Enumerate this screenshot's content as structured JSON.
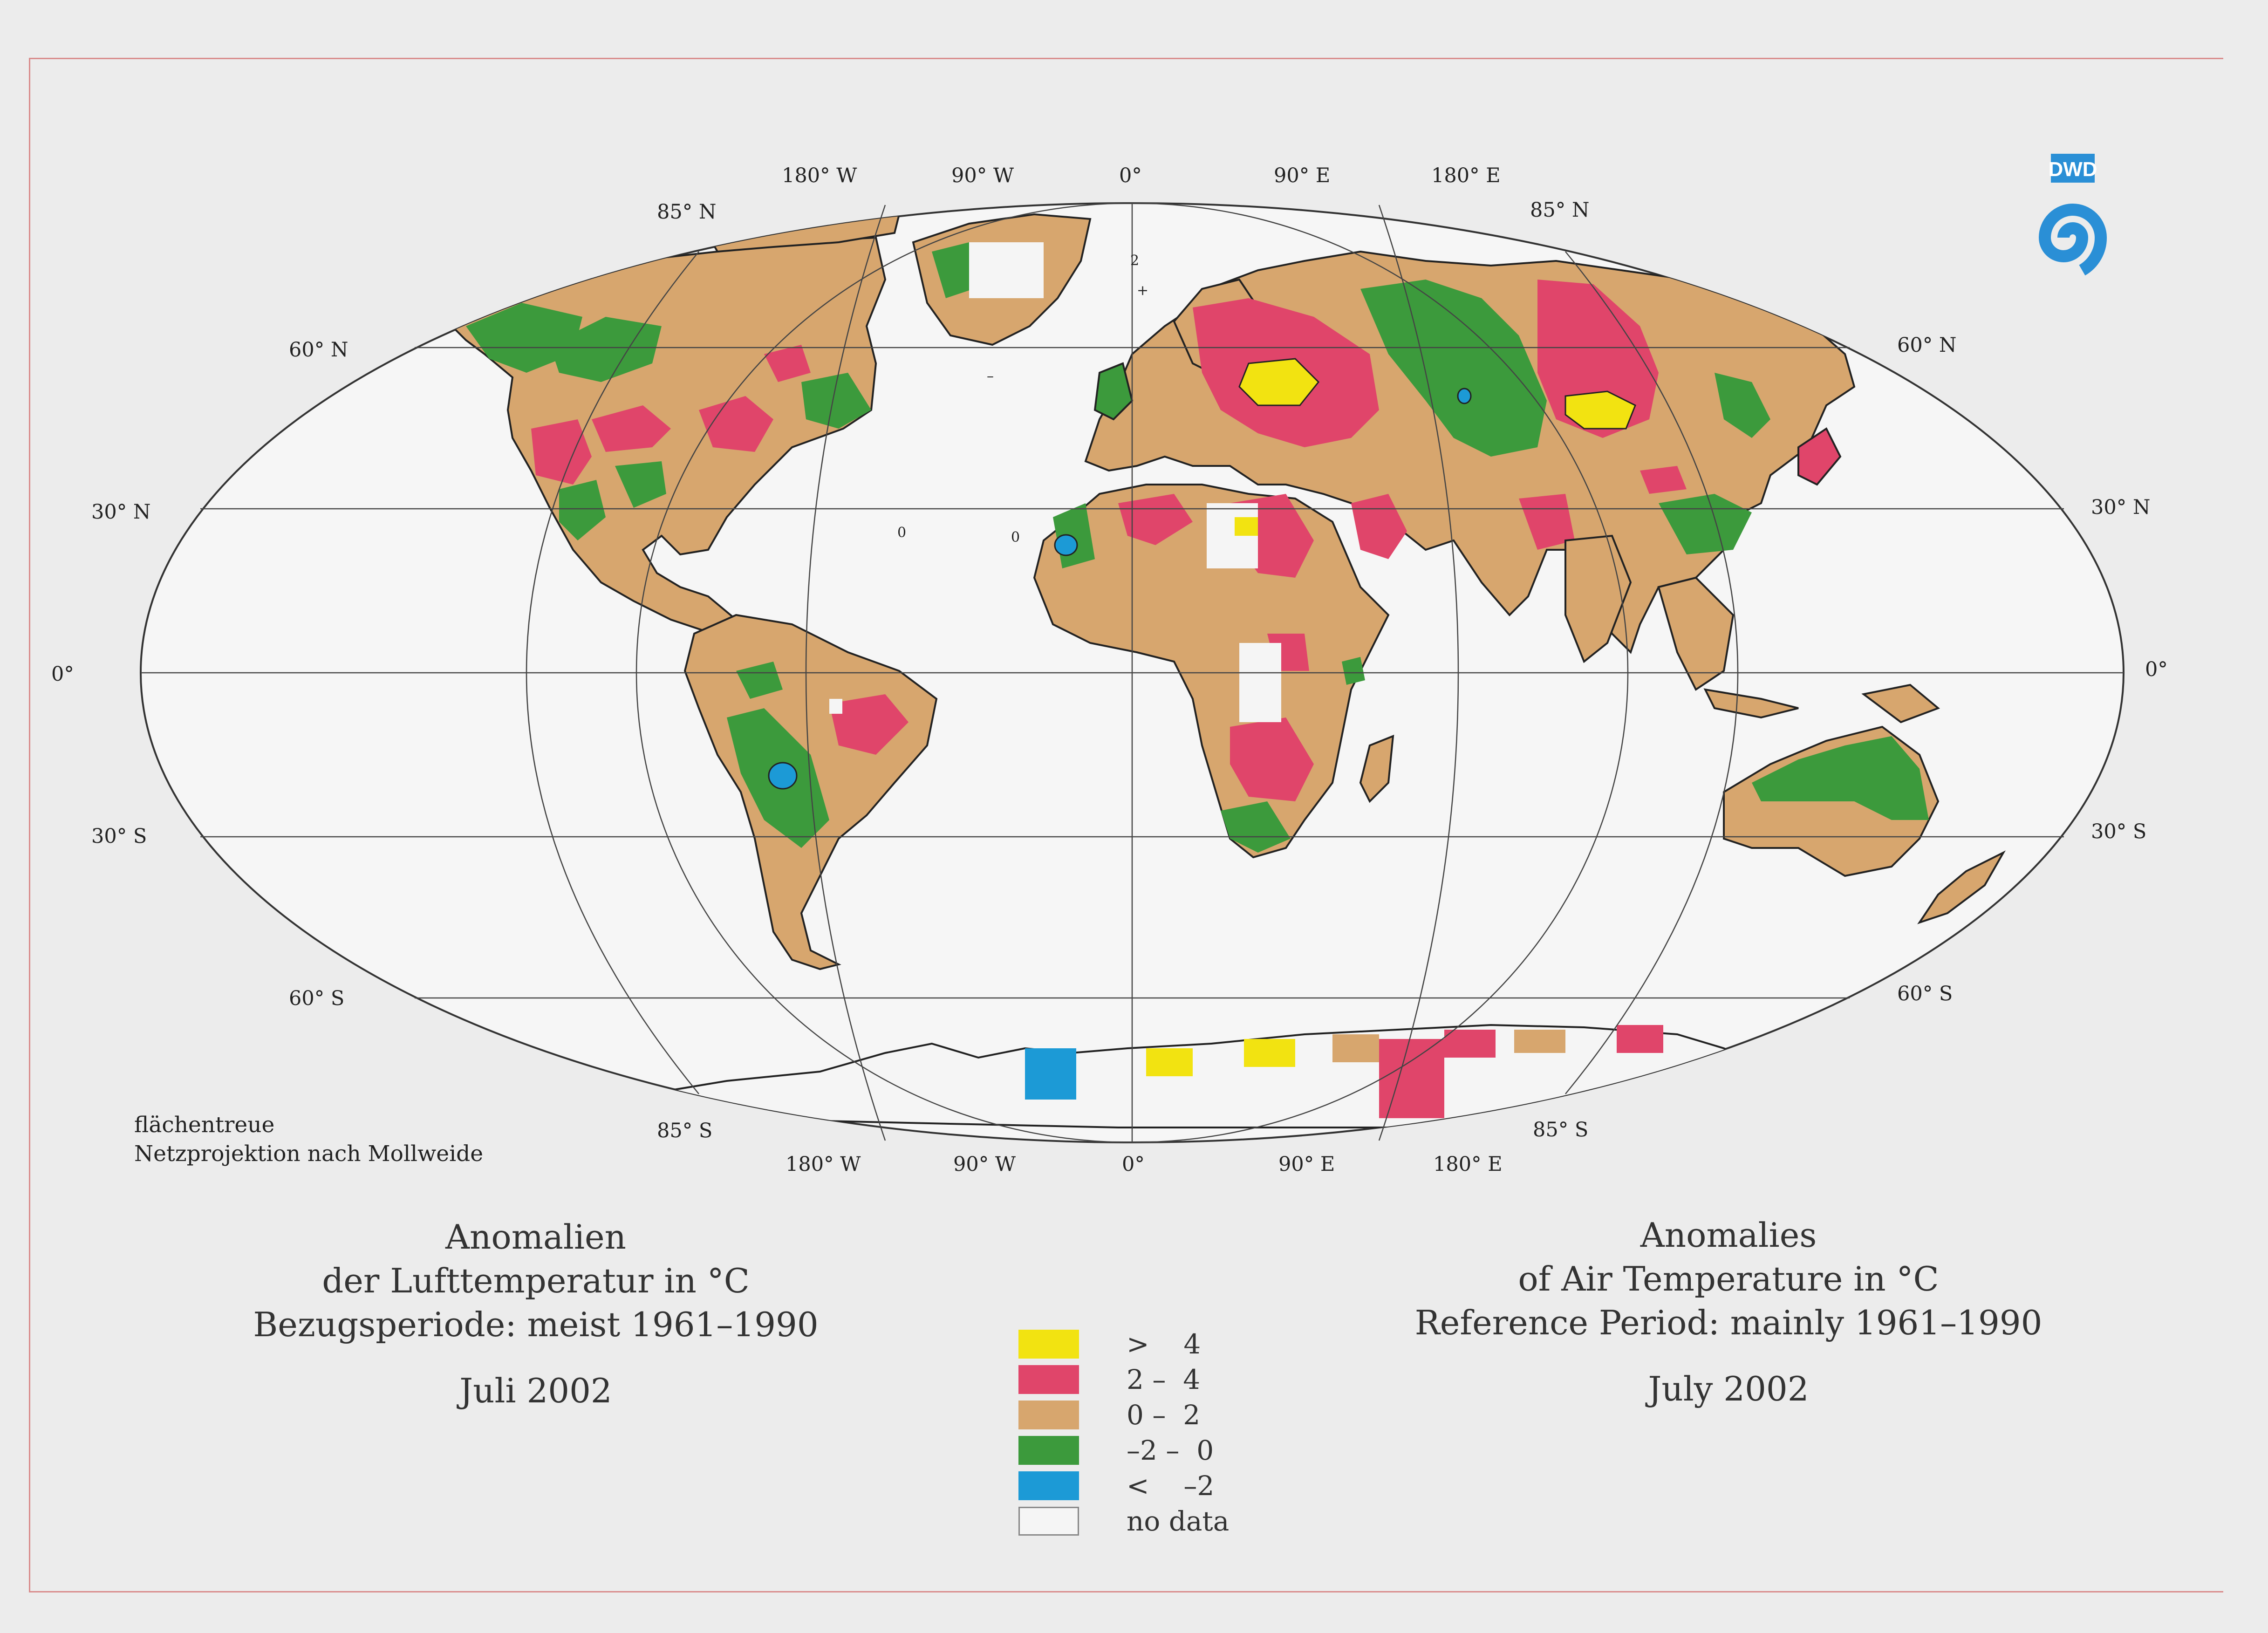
{
  "colors": {
    "above_4": "#f2e311",
    "2_to_4": "#e0456a",
    "0_to_2": "#d7a66e",
    "minus2_to_0": "#3c9a3c",
    "below_minus2": "#1c9ad6",
    "no_data": "#f5f5f5",
    "background": "#ececec",
    "logo_blue": "#2a8fd6"
  },
  "graticule": {
    "top_lon": [
      "180° W",
      "90° W",
      "0°",
      "90° E",
      "180° E"
    ],
    "bottom_lon": [
      "180° W",
      "90° W",
      "0°",
      "90° E",
      "180° E"
    ],
    "lat_left": [
      "85° N",
      "60° N",
      "30° N",
      "0°",
      "30° S",
      "60° S",
      "85° S"
    ],
    "lat_right": [
      "85° N",
      "60° N",
      "30° N",
      "0°",
      "30° S",
      "60° S",
      "85° S"
    ]
  },
  "projection_note": [
    "flächentreue",
    "Netzprojektion nach Mollweide"
  ],
  "title_de": {
    "line1": "Anomalien",
    "line2": "der Lufttemperatur in °C",
    "line3": "Bezugsperiode: meist 1961–1990",
    "date": "Juli 2002"
  },
  "title_en": {
    "line1": "Anomalies",
    "line2": "of Air Temperature in °C",
    "line3": "Reference Period: mainly 1961–1990",
    "date": "July 2002"
  },
  "legend": [
    {
      "label": ">    4",
      "color": "#f2e311"
    },
    {
      "label": "2 –  4",
      "color": "#e0456a"
    },
    {
      "label": "0 –  2",
      "color": "#d7a66e"
    },
    {
      "label": "–2 –  0",
      "color": "#3c9a3c"
    },
    {
      "label": "<    –2",
      "color": "#1c9ad6"
    },
    {
      "label": "no data",
      "color": "#f5f5f5"
    }
  ],
  "logo": {
    "text": "DWD"
  },
  "map_labels": [
    "2",
    "+",
    "–",
    "0",
    "0"
  ]
}
